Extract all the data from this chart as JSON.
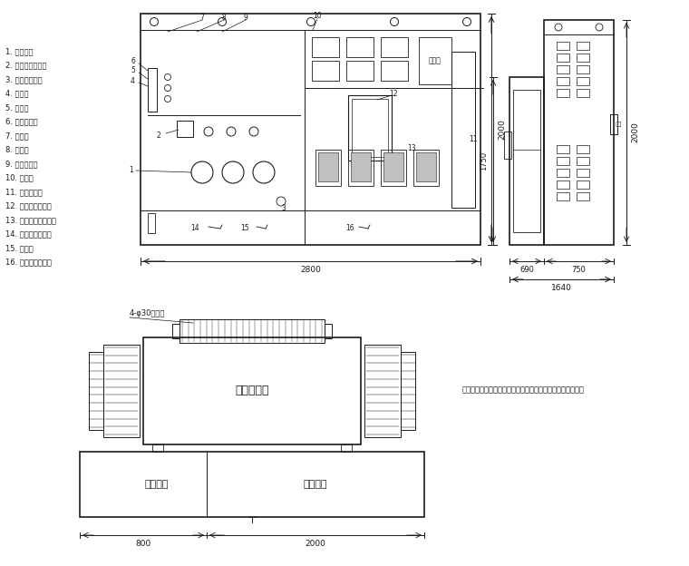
{
  "bg_color": "#ffffff",
  "lc": "#1a1a1a",
  "lw": 0.7,
  "lw2": 1.2,
  "legend_items": [
    "1. 高压套管",
    "2. 四位置负荷开关",
    "3. 调压分接开关",
    "4. 油位计",
    "5. 注油口",
    "6. 压力释放阀",
    "7. 油量片",
    "8. 压力表",
    "9. 储油柜断器",
    "10. 表计室",
    "11. 无功补偿室",
    "12. 低压侧主断路器",
    "13. 低压侧负载断路器",
    "14. 高压室接地端子",
    "15. 放油阀",
    "16. 低压室接地端子"
  ],
  "front_dim_w": "2800",
  "front_dim_h": "2000",
  "side_dim_w": "1640",
  "side_dim_sub1": "690",
  "side_dim_sub2": "750",
  "side_dim_h1": "1750",
  "side_dim_h2": "2000",
  "bot_body": "变压器主体",
  "bot_left": "高压间隔",
  "bot_right": "低压间隔",
  "bot_dim_left": "800",
  "bot_dim_right": "2000",
  "bot_note": "4-φ30安装孔",
  "note_text": "说明：以上尺寸仅供作为参考，最终尺寸以厂家产品实物为准"
}
